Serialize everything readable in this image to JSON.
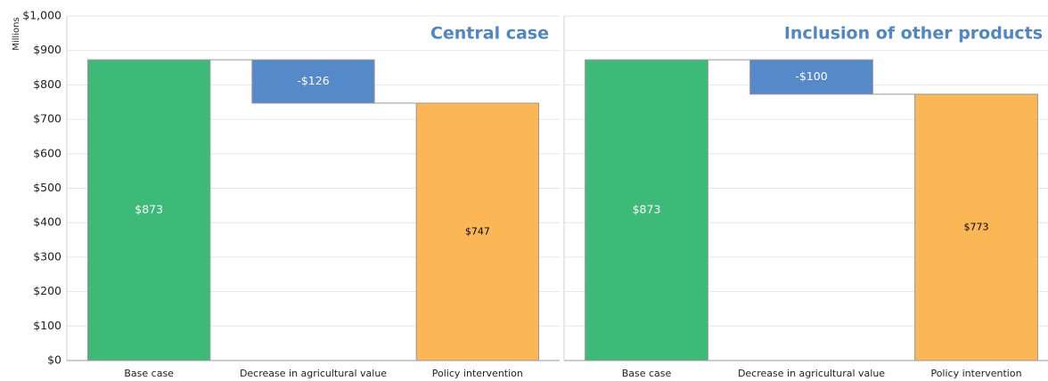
{
  "chart_data": [
    {
      "type": "waterfall",
      "title": "Central case",
      "y_label": "Millions",
      "categories": [
        "Base case",
        "Decrease in agricultural value",
        "Policy intervention"
      ],
      "values": [
        873,
        -126,
        747
      ],
      "value_labels": [
        "$873",
        "-$126",
        "$747"
      ],
      "measures": [
        "absolute",
        "relative",
        "total"
      ],
      "colors": [
        "#3dba78",
        "#5589c9",
        "#fbb755"
      ],
      "label_colors": [
        "#ffffff",
        "#ffffff",
        "#000000"
      ],
      "ylim": [
        0,
        1000
      ],
      "yticks": [
        {
          "value": 0,
          "label": "$0"
        },
        {
          "value": 100,
          "label": "$100"
        },
        {
          "value": 200,
          "label": "$200"
        },
        {
          "value": 300,
          "label": "$300"
        },
        {
          "value": 400,
          "label": "$400"
        },
        {
          "value": 500,
          "label": "$500"
        },
        {
          "value": 600,
          "label": "$600"
        },
        {
          "value": 700,
          "label": "$700"
        },
        {
          "value": 800,
          "label": "$800"
        },
        {
          "value": 900,
          "label": "$900"
        },
        {
          "value": 1000,
          "label": "$1,000"
        }
      ],
      "grid": true,
      "show_ytick_labels": true
    },
    {
      "type": "waterfall",
      "title": "Inclusion of other products",
      "categories": [
        "Base case",
        "Decrease in agricultural value",
        "Policy intervention"
      ],
      "values": [
        873,
        -100,
        773
      ],
      "value_labels": [
        "$873",
        "-$100",
        "$773"
      ],
      "measures": [
        "absolute",
        "relative",
        "total"
      ],
      "colors": [
        "#3dba78",
        "#5589c9",
        "#fbb755"
      ],
      "label_colors": [
        "#ffffff",
        "#ffffff",
        "#000000"
      ],
      "ylim": [
        0,
        1000
      ],
      "yticks": [
        0,
        100,
        200,
        300,
        400,
        500,
        600,
        700,
        800,
        900,
        1000
      ],
      "grid": true,
      "show_ytick_labels": false
    }
  ]
}
